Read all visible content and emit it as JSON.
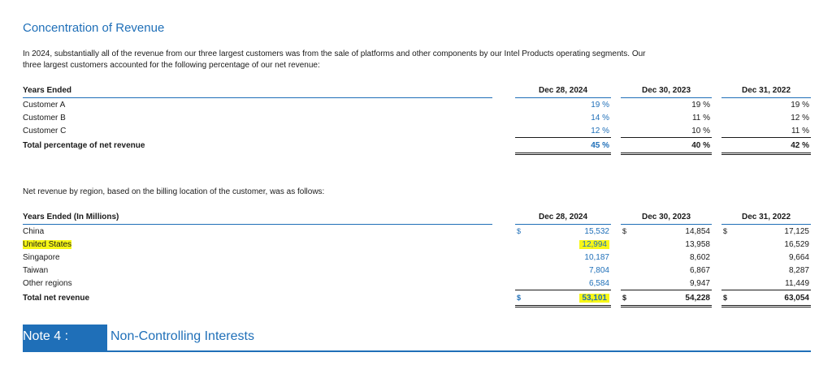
{
  "section_title": "Concentration of Revenue",
  "intro_lines": [
    "In 2024, substantially all of the revenue from our three largest customers was from the sale of platforms and other components by our Intel Products operating segments. Our",
    "three largest customers accounted for the following percentage of our net revenue:"
  ],
  "customers_table": {
    "header": {
      "label": "Years Ended",
      "cols": [
        "Dec 28, 2024",
        "Dec 30, 2023",
        "Dec 31, 2022"
      ]
    },
    "rows": [
      {
        "label": "Customer A",
        "values": [
          "19 %",
          "19 %",
          "19 %"
        ]
      },
      {
        "label": "Customer B",
        "values": [
          "14 %",
          "11 %",
          "12 %"
        ]
      },
      {
        "label": "Customer C",
        "values": [
          "12 %",
          "10 %",
          "11 %"
        ]
      }
    ],
    "total": {
      "label": "Total percentage of net revenue",
      "values": [
        "45 %",
        "40 %",
        "42 %"
      ]
    }
  },
  "region_intro": "Net revenue by region, based on the billing location of the customer, was as follows:",
  "region_table": {
    "header": {
      "label": "Years Ended (In Millions)",
      "cols": [
        "Dec 28, 2024",
        "Dec 30, 2023",
        "Dec 31, 2022"
      ]
    },
    "currency_symbol": "$",
    "rows": [
      {
        "label": "China",
        "values": [
          "15,532",
          "14,854",
          "17,125"
        ]
      },
      {
        "label": "United States",
        "values": [
          "12,994",
          "13,958",
          "16,529"
        ]
      },
      {
        "label": "Singapore",
        "values": [
          "10,187",
          "8,602",
          "9,664"
        ]
      },
      {
        "label": "Taiwan",
        "values": [
          "7,804",
          "6,867",
          "8,287"
        ]
      },
      {
        "label": "Other regions",
        "values": [
          "6,584",
          "9,947",
          "11,449"
        ]
      }
    ],
    "total": {
      "label": "Total net revenue",
      "values": [
        "53,101",
        "54,228",
        "63,054"
      ]
    }
  },
  "note": {
    "number": "Note 4 :",
    "title": "Non-Controlling Interests"
  },
  "colors": {
    "accent": "#1f6fb8",
    "highlight": "#f7f716"
  }
}
